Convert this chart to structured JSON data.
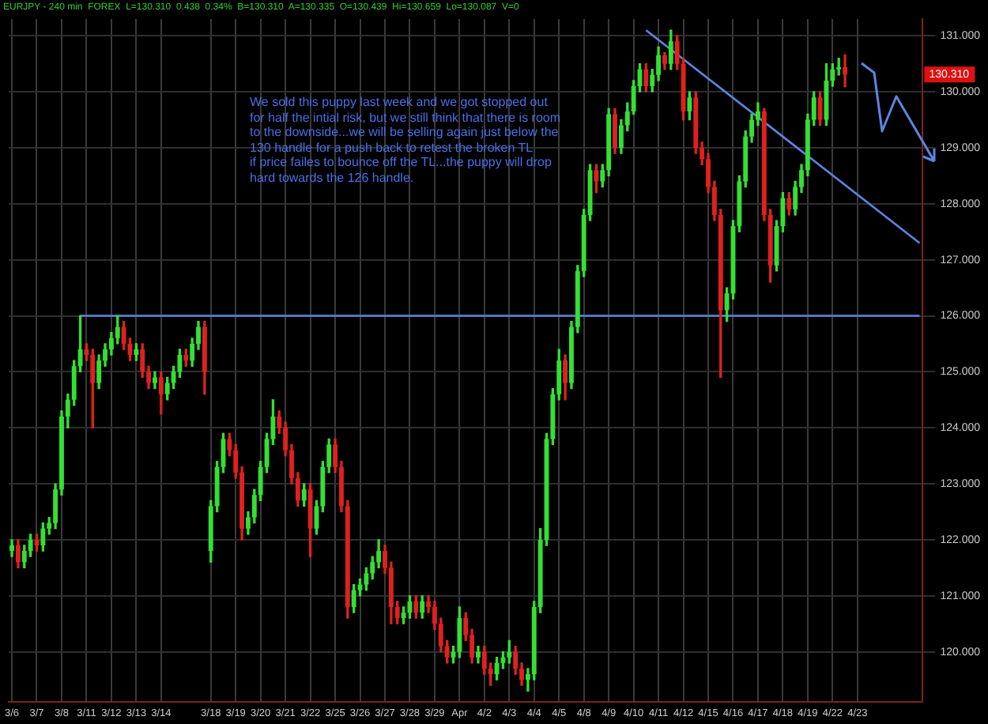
{
  "chart_data": {
    "type": "candlestick",
    "title": "EURJPY - 240 min  FOREX  L=130.310  0.438  0.34%  B=130.310  A=130.335  O=130.439  Hi=130.659  Lo=130.087  V=0",
    "categories": [
      "3/6",
      null,
      null,
      null,
      "3/7",
      null,
      null,
      null,
      "3/8",
      null,
      null,
      null,
      "3/11",
      null,
      null,
      null,
      "3/12",
      null,
      null,
      null,
      "3/13",
      null,
      null,
      null,
      "3/14",
      null,
      null,
      null,
      null,
      null,
      null,
      null,
      "3/18",
      null,
      null,
      null,
      "3/19",
      null,
      null,
      null,
      "3/20",
      null,
      null,
      null,
      "3/21",
      null,
      null,
      null,
      "3/22",
      null,
      null,
      null,
      "3/25",
      null,
      null,
      null,
      "3/26",
      null,
      null,
      null,
      "3/27",
      null,
      null,
      null,
      "3/28",
      null,
      null,
      null,
      "3/29",
      null,
      null,
      null,
      "Apr",
      null,
      null,
      null,
      "4/2",
      null,
      null,
      null,
      "4/3",
      null,
      null,
      null,
      "4/4",
      null,
      null,
      null,
      "4/5",
      null,
      null,
      null,
      "4/8",
      null,
      null,
      null,
      "4/9",
      null,
      null,
      null,
      "4/10",
      null,
      null,
      null,
      "4/11",
      null,
      null,
      null,
      "4/12",
      null,
      null,
      null,
      "4/15",
      null,
      null,
      null,
      "4/16",
      null,
      null,
      null,
      "4/17",
      null,
      null,
      null,
      "4/18",
      null,
      null,
      null,
      "4/19",
      null,
      null,
      null,
      "4/22",
      null,
      null,
      null,
      "4/23",
      null,
      null,
      null,
      null,
      null,
      null,
      null,
      null,
      null,
      null
    ],
    "ohlc": [
      [
        121.8,
        122.0,
        121.7,
        121.9
      ],
      [
        121.9,
        122.0,
        121.5,
        121.6
      ],
      [
        121.6,
        121.9,
        121.5,
        121.8
      ],
      [
        121.8,
        122.1,
        121.7,
        122.0
      ],
      [
        122.0,
        122.1,
        121.8,
        121.9
      ],
      [
        121.9,
        122.3,
        121.8,
        122.2
      ],
      [
        122.2,
        122.4,
        122.1,
        122.3
      ],
      [
        122.3,
        123.0,
        122.2,
        122.9
      ],
      [
        122.9,
        124.3,
        122.8,
        124.2
      ],
      [
        124.2,
        124.6,
        124.0,
        124.5
      ],
      [
        124.5,
        125.2,
        124.4,
        125.1
      ],
      [
        125.1,
        126.0,
        125.0,
        125.4
      ],
      [
        125.4,
        125.5,
        125.2,
        125.3
      ],
      [
        125.3,
        125.4,
        124.0,
        124.8
      ],
      [
        124.8,
        125.3,
        124.7,
        125.2
      ],
      [
        125.2,
        125.5,
        125.1,
        125.4
      ],
      [
        125.4,
        125.7,
        125.3,
        125.6
      ],
      [
        125.6,
        126.0,
        125.5,
        125.8
      ],
      [
        125.8,
        125.9,
        125.4,
        125.5
      ],
      [
        125.5,
        125.6,
        125.2,
        125.3
      ],
      [
        125.3,
        125.5,
        125.2,
        125.4
      ],
      [
        125.4,
        125.5,
        124.9,
        125.0
      ],
      [
        125.0,
        125.1,
        124.7,
        124.8
      ],
      [
        124.8,
        125.0,
        124.7,
        124.9
      ],
      [
        124.9,
        125.0,
        124.25,
        124.6
      ],
      [
        124.6,
        124.9,
        124.5,
        124.8
      ],
      [
        124.8,
        125.1,
        124.7,
        125.0
      ],
      [
        125.0,
        125.4,
        124.9,
        125.3
      ],
      [
        125.3,
        125.4,
        125.1,
        125.2
      ],
      [
        125.2,
        125.6,
        125.1,
        125.5
      ],
      [
        125.5,
        125.9,
        125.4,
        125.8
      ],
      [
        125.8,
        125.9,
        124.6,
        125.0
      ],
      [
        121.8,
        122.7,
        121.6,
        122.6
      ],
      [
        122.6,
        123.4,
        122.5,
        123.3
      ],
      [
        123.3,
        123.9,
        123.2,
        123.8
      ],
      [
        123.8,
        123.9,
        123.5,
        123.6
      ],
      [
        123.6,
        123.7,
        123.1,
        123.2
      ],
      [
        123.2,
        123.3,
        122.0,
        122.2
      ],
      [
        122.2,
        122.5,
        122.1,
        122.4
      ],
      [
        122.4,
        122.9,
        122.3,
        122.8
      ],
      [
        122.8,
        123.4,
        122.7,
        123.3
      ],
      [
        123.3,
        123.9,
        123.2,
        123.8
      ],
      [
        123.8,
        124.5,
        123.7,
        124.2
      ],
      [
        124.2,
        124.3,
        123.9,
        124.0
      ],
      [
        124.0,
        124.1,
        123.5,
        123.6
      ],
      [
        123.6,
        123.7,
        123.0,
        123.1
      ],
      [
        123.1,
        123.2,
        122.6,
        122.7
      ],
      [
        122.7,
        123.0,
        122.6,
        122.9
      ],
      [
        122.9,
        123.0,
        121.7,
        122.2
      ],
      [
        122.2,
        122.7,
        122.1,
        122.6
      ],
      [
        122.6,
        123.4,
        122.5,
        123.3
      ],
      [
        123.3,
        123.8,
        123.2,
        123.7
      ],
      [
        123.7,
        123.8,
        123.2,
        123.3
      ],
      [
        123.3,
        123.4,
        122.5,
        122.6
      ],
      [
        122.6,
        122.7,
        120.6,
        120.8
      ],
      [
        120.8,
        121.2,
        120.7,
        121.1
      ],
      [
        121.1,
        121.3,
        121.0,
        121.2
      ],
      [
        121.2,
        121.5,
        121.1,
        121.4
      ],
      [
        121.4,
        121.7,
        121.3,
        121.6
      ],
      [
        121.6,
        122.0,
        121.5,
        121.8
      ],
      [
        121.8,
        121.9,
        121.4,
        121.5
      ],
      [
        121.5,
        121.6,
        120.5,
        120.8
      ],
      [
        120.8,
        120.9,
        120.5,
        120.6
      ],
      [
        120.6,
        120.8,
        120.5,
        120.7
      ],
      [
        120.7,
        121.0,
        120.6,
        120.9
      ],
      [
        120.9,
        121.0,
        120.6,
        120.7
      ],
      [
        120.7,
        121.0,
        120.6,
        120.9
      ],
      [
        120.9,
        121.0,
        120.7,
        120.8
      ],
      [
        120.8,
        120.9,
        120.4,
        120.5
      ],
      [
        120.5,
        120.6,
        120.0,
        120.1
      ],
      [
        120.1,
        120.2,
        119.8,
        119.9
      ],
      [
        119.9,
        120.1,
        119.8,
        120.0
      ],
      [
        120.0,
        120.8,
        119.9,
        120.6
      ],
      [
        120.6,
        120.7,
        120.2,
        120.3
      ],
      [
        120.3,
        120.4,
        119.8,
        119.9
      ],
      [
        119.9,
        120.1,
        119.8,
        120.0
      ],
      [
        120.0,
        120.1,
        119.6,
        119.7
      ],
      [
        119.7,
        119.8,
        119.4,
        119.6
      ],
      [
        119.6,
        119.9,
        119.5,
        119.8
      ],
      [
        119.8,
        120.0,
        119.7,
        119.9
      ],
      [
        119.9,
        120.2,
        119.8,
        120.0
      ],
      [
        120.0,
        120.1,
        119.6,
        119.7
      ],
      [
        119.7,
        119.8,
        119.4,
        119.5
      ],
      [
        119.5,
        119.7,
        119.3,
        119.6
      ],
      [
        119.6,
        120.9,
        119.5,
        120.8
      ],
      [
        120.8,
        122.2,
        120.7,
        122.0
      ],
      [
        122.0,
        123.9,
        121.9,
        123.8
      ],
      [
        123.8,
        124.7,
        123.7,
        124.6
      ],
      [
        124.6,
        125.4,
        124.5,
        125.2
      ],
      [
        125.2,
        125.3,
        124.5,
        124.8
      ],
      [
        124.8,
        125.9,
        124.7,
        125.8
      ],
      [
        125.8,
        126.9,
        125.7,
        126.8
      ],
      [
        126.8,
        127.9,
        126.7,
        127.8
      ],
      [
        127.8,
        128.7,
        127.7,
        128.6
      ],
      [
        128.6,
        128.7,
        128.2,
        128.4
      ],
      [
        128.4,
        128.7,
        128.3,
        128.6
      ],
      [
        128.6,
        129.7,
        128.5,
        129.6
      ],
      [
        129.6,
        129.7,
        128.9,
        129.0
      ],
      [
        129.0,
        129.5,
        128.9,
        129.4
      ],
      [
        129.4,
        129.8,
        129.3,
        129.65
      ],
      [
        129.65,
        130.2,
        129.6,
        130.1
      ],
      [
        130.1,
        130.5,
        130.0,
        130.4
      ],
      [
        130.4,
        130.5,
        130.0,
        130.1
      ],
      [
        130.1,
        130.4,
        130.0,
        130.3
      ],
      [
        130.3,
        130.8,
        130.2,
        130.65
      ],
      [
        130.65,
        130.7,
        130.4,
        130.5
      ],
      [
        130.5,
        131.1,
        130.4,
        130.9
      ],
      [
        130.9,
        131.0,
        130.4,
        130.5
      ],
      [
        130.5,
        130.6,
        129.5,
        129.65
      ],
      [
        129.65,
        130.0,
        129.5,
        129.9
      ],
      [
        129.9,
        130.0,
        128.9,
        129.0
      ],
      [
        129.0,
        129.1,
        128.7,
        128.8
      ],
      [
        128.8,
        128.9,
        128.2,
        128.3
      ],
      [
        128.3,
        128.4,
        127.7,
        127.8
      ],
      [
        127.8,
        127.9,
        124.9,
        126.1
      ],
      [
        126.1,
        126.5,
        125.9,
        126.4
      ],
      [
        126.4,
        127.7,
        126.3,
        127.6
      ],
      [
        127.6,
        128.5,
        127.5,
        128.4
      ],
      [
        128.4,
        129.3,
        128.3,
        129.2
      ],
      [
        129.2,
        129.6,
        129.1,
        129.5
      ],
      [
        129.5,
        129.8,
        129.4,
        129.65
      ],
      [
        129.65,
        129.7,
        127.7,
        127.8
      ],
      [
        127.8,
        127.9,
        126.6,
        126.9
      ],
      [
        126.9,
        127.7,
        126.8,
        127.6
      ],
      [
        127.6,
        128.2,
        127.5,
        128.1
      ],
      [
        128.1,
        128.2,
        127.8,
        127.9
      ],
      [
        127.9,
        128.4,
        127.8,
        128.3
      ],
      [
        128.3,
        128.7,
        128.2,
        128.6
      ],
      [
        128.6,
        129.6,
        128.5,
        129.5
      ],
      [
        129.5,
        130.0,
        129.4,
        129.9
      ],
      [
        129.9,
        130.0,
        129.4,
        129.5
      ],
      [
        129.5,
        130.5,
        129.4,
        130.2
      ],
      [
        130.2,
        130.5,
        130.1,
        130.4
      ],
      [
        130.4,
        130.6,
        130.3,
        130.439
      ],
      [
        130.439,
        130.659,
        130.087,
        130.31
      ],
      null,
      null,
      null,
      null,
      null,
      null,
      null,
      null,
      null,
      null,
      null,
      null
    ],
    "colors": [
      "#33e033",
      "#e02020",
      "#33e033",
      "#33e033",
      "#e02020",
      "#33e033",
      "#33e033",
      "#33e033",
      "#33e033",
      "#33e033",
      "#33e033",
      "#33e033",
      "#e02020",
      "#e02020",
      "#33e033",
      "#33e033",
      "#33e033",
      "#33e033",
      "#e02020",
      "#e02020",
      "#33e033",
      "#e02020",
      "#e02020",
      "#33e033",
      "#e02020",
      "#33e033",
      "#33e033",
      "#33e033",
      "#e02020",
      "#33e033",
      "#33e033",
      "#e02020",
      "#33e033",
      "#33e033",
      "#33e033",
      "#e02020",
      "#e02020",
      "#e02020",
      "#33e033",
      "#33e033",
      "#33e033",
      "#33e033",
      "#33e033",
      "#e02020",
      "#e02020",
      "#e02020",
      "#e02020",
      "#33e033",
      "#e02020",
      "#33e033",
      "#33e033",
      "#33e033",
      "#e02020",
      "#e02020",
      "#e02020",
      "#33e033",
      "#33e033",
      "#33e033",
      "#33e033",
      "#33e033",
      "#e02020",
      "#e02020",
      "#e02020",
      "#33e033",
      "#33e033",
      "#e02020",
      "#33e033",
      "#e02020",
      "#e02020",
      "#e02020",
      "#e02020",
      "#33e033",
      "#33e033",
      "#e02020",
      "#e02020",
      "#33e033",
      "#e02020",
      "#e02020",
      "#33e033",
      "#33e033",
      "#33e033",
      "#e02020",
      "#e02020",
      "#33e033",
      "#33e033",
      "#33e033",
      "#33e033",
      "#33e033",
      "#33e033",
      "#e02020",
      "#33e033",
      "#33e033",
      "#33e033",
      "#33e033",
      "#e02020",
      "#33e033",
      "#33e033",
      "#e02020",
      "#33e033",
      "#33e033",
      "#33e033",
      "#33e033",
      "#e02020",
      "#33e033",
      "#33e033",
      "#e02020",
      "#33e033",
      "#e02020",
      "#e02020",
      "#33e033",
      "#e02020",
      "#e02020",
      "#e02020",
      "#e02020",
      "#e02020",
      "#33e033",
      "#33e033",
      "#33e033",
      "#33e033",
      "#33e033",
      "#33e033",
      "#e02020",
      "#e02020",
      "#33e033",
      "#33e033",
      "#e02020",
      "#33e033",
      "#33e033",
      "#33e033",
      "#33e033",
      "#e02020",
      "#33e033",
      "#33e033",
      "#33e033",
      "#e02020",
      null,
      null,
      null,
      null,
      null,
      null,
      null,
      null,
      null,
      null,
      null,
      null
    ],
    "series": [
      {
        "type": "line",
        "color": "#5b86e0",
        "values": [
          null,
          null,
          null,
          null,
          null,
          null,
          null,
          null,
          null,
          null,
          null,
          null,
          null,
          null,
          null,
          null,
          null,
          null,
          null,
          null,
          null,
          null,
          null,
          null,
          null,
          null,
          null,
          null,
          null,
          null,
          null,
          null,
          null,
          null,
          null,
          null,
          null,
          null,
          null,
          null,
          null,
          null,
          null,
          null,
          null,
          null,
          null,
          null,
          null,
          null,
          null,
          null,
          null,
          null,
          null,
          null,
          null,
          null,
          null,
          null,
          null,
          null,
          null,
          null,
          null,
          null,
          null,
          null,
          null,
          null,
          null,
          null,
          null,
          null,
          null,
          null,
          null,
          null,
          null,
          null,
          null,
          null,
          null,
          null,
          null,
          null,
          null,
          null,
          null,
          null,
          null,
          null,
          null,
          null,
          null,
          null,
          null,
          null,
          null,
          null,
          null,
          null,
          131.1,
          null,
          null,
          null,
          null,
          null,
          null,
          null,
          null,
          null,
          null,
          null,
          null,
          null,
          null,
          null,
          null,
          null,
          null,
          null,
          null,
          null,
          null,
          null,
          null,
          null,
          null,
          null,
          null,
          null,
          null,
          null,
          null,
          null,
          null,
          null,
          null,
          null,
          null,
          null,
          null,
          null,
          null,
          null,
          127.3
        ]
      },
      {
        "type": "line",
        "color": "#5b86e0",
        "values": [
          null,
          null,
          null,
          null,
          null,
          null,
          null,
          null,
          null,
          null,
          null,
          126.0,
          null,
          null,
          null,
          null,
          null,
          null,
          null,
          null,
          null,
          null,
          null,
          null,
          null,
          null,
          null,
          null,
          null,
          null,
          null,
          null,
          null,
          null,
          null,
          null,
          null,
          null,
          null,
          null,
          null,
          null,
          null,
          null,
          null,
          null,
          null,
          null,
          null,
          null,
          null,
          null,
          null,
          null,
          null,
          null,
          null,
          null,
          null,
          null,
          null,
          null,
          null,
          null,
          null,
          null,
          null,
          null,
          null,
          null,
          null,
          null,
          null,
          null,
          null,
          null,
          null,
          null,
          null,
          null,
          null,
          null,
          null,
          null,
          null,
          null,
          null,
          null,
          null,
          null,
          null,
          null,
          null,
          null,
          null,
          null,
          null,
          null,
          null,
          null,
          null,
          null,
          null,
          null,
          null,
          null,
          null,
          null,
          null,
          null,
          null,
          null,
          null,
          null,
          null,
          null,
          null,
          null,
          null,
          null,
          null,
          null,
          null,
          null,
          null,
          null,
          null,
          null,
          null,
          null,
          null,
          null,
          null,
          null,
          null,
          null,
          null,
          null,
          null,
          null,
          null,
          null,
          null,
          null,
          null,
          null,
          126.0
        ]
      }
    ],
    "annotations": [
      "We sold this puppy last week and we got stopped out\nfor half the intial risk, but we still think that there is room\nto the downside...we will be selling again just below the\n130 handle for a push back to retest the broken TL\nif price failes to bounce off the TL...the puppy will drop\nhard towards the 126 handle.",
      "130.310"
    ],
    "ylim": [
      119.1,
      131.3
    ],
    "yticks": [
      {
        "value": 120,
        "label": "120.000"
      },
      {
        "value": 121,
        "label": "121.000"
      },
      {
        "value": 122,
        "label": "122.000"
      },
      {
        "value": 123,
        "label": "123.000"
      },
      {
        "value": 124,
        "label": "124.000"
      },
      {
        "value": 125,
        "label": "125.000"
      },
      {
        "value": 126,
        "label": "126.000"
      },
      {
        "value": 127,
        "label": "127.000"
      },
      {
        "value": 128,
        "label": "128.000"
      },
      {
        "value": 129,
        "label": "129.000"
      },
      {
        "value": 130,
        "label": "130.000"
      },
      {
        "value": 131,
        "label": "131.000"
      }
    ],
    "grid": true
  }
}
